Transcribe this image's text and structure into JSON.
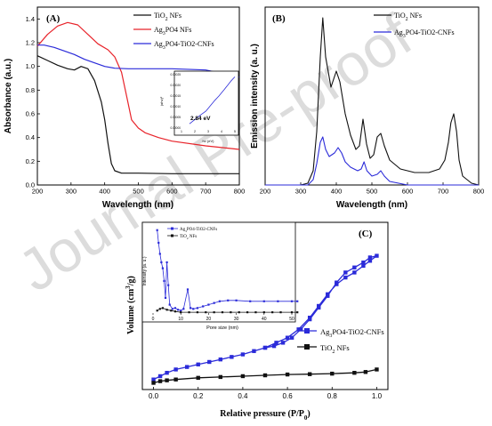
{
  "watermark": "Journal Pre-proof",
  "colors": {
    "black": "#111111",
    "red": "#e8232a",
    "blue": "#2b2bd9",
    "frame": "#000000",
    "watermark": "#d9d9d9"
  },
  "chart_data": [
    {
      "type": "line",
      "panel": "(A)",
      "xlabel": "Wavelength (nm)",
      "ylabel": "Absorbance (a.u.)",
      "xlim": [
        200,
        800
      ],
      "ylim": [
        0,
        1.5
      ],
      "xticks": [
        "200",
        "300",
        "400",
        "500",
        "600",
        "700",
        "800"
      ],
      "yticks": [
        "0.0",
        "0.2",
        "0.4",
        "0.6",
        "0.8",
        "1.0",
        "1.2",
        "1.4"
      ],
      "legend_placement": "top-right",
      "series": [
        {
          "name": "TiO2 NFs",
          "legend_main": "TiO",
          "legend_sub": "2",
          "legend_rest": " NFs",
          "color": "#111111",
          "x": [
            200,
            230,
            260,
            290,
            310,
            330,
            350,
            370,
            390,
            400,
            410,
            420,
            430,
            450,
            500,
            600,
            700,
            800
          ],
          "y": [
            1.09,
            1.05,
            1.01,
            0.98,
            0.97,
            1.0,
            0.98,
            0.88,
            0.7,
            0.55,
            0.35,
            0.18,
            0.12,
            0.1,
            0.1,
            0.095,
            0.095,
            0.095
          ]
        },
        {
          "name": "Ag3PO4 NFs",
          "legend_main": "Ag",
          "legend_sub": "3",
          "legend_rest": "PO4 NFs",
          "color": "#e8232a",
          "x": [
            200,
            230,
            260,
            290,
            320,
            350,
            380,
            410,
            430,
            450,
            465,
            480,
            500,
            520,
            560,
            600,
            700,
            800
          ],
          "y": [
            1.17,
            1.27,
            1.34,
            1.37,
            1.35,
            1.27,
            1.19,
            1.14,
            1.08,
            0.95,
            0.75,
            0.55,
            0.48,
            0.44,
            0.4,
            0.37,
            0.33,
            0.3
          ]
        },
        {
          "name": "Ag3PO4-TiO2-CNFs",
          "legend_main": "Ag",
          "legend_sub": "3",
          "legend_rest": "PO4-TiO2-CNFs",
          "color": "#2b2bd9",
          "x": [
            200,
            220,
            250,
            280,
            310,
            340,
            370,
            400,
            430,
            470,
            520,
            600,
            700,
            800
          ],
          "y": [
            1.18,
            1.18,
            1.16,
            1.13,
            1.1,
            1.06,
            1.03,
            1.0,
            0.985,
            0.98,
            0.98,
            0.98,
            0.97,
            0.91
          ]
        }
      ],
      "inset": {
        "ylabel": "(αhν)²",
        "xlabel": "hν (eV)",
        "yticks": [
          "0.00025",
          "0.00020",
          "0.00015",
          "0.00010",
          "0.00005",
          "0.00000"
        ],
        "xticks": [
          "1",
          "2",
          "3",
          "4",
          "5"
        ],
        "annotation": "2.84 eV",
        "x": [
          1.6,
          2.0,
          2.4,
          2.84,
          3.1,
          3.5,
          3.8,
          4.2,
          4.7,
          5.0
        ],
        "y": [
          2e-05,
          4e-05,
          6e-05,
          8e-05,
          0.0001,
          0.00013,
          0.00015,
          0.00018,
          0.00022,
          0.00024
        ]
      }
    },
    {
      "type": "line",
      "panel": "(B)",
      "xlabel": "Wavelength (nm)",
      "ylabel": "Emission intensity (a. u.)",
      "xlim": [
        200,
        800
      ],
      "ylim": [
        0,
        100
      ],
      "xticks": [
        "200",
        "300",
        "400",
        "500",
        "600",
        "700",
        "800"
      ],
      "legend_placement": "top-right",
      "series": [
        {
          "name": "TiO2 NFs",
          "legend_main": "TiO",
          "legend_sub": "2",
          "legend_rest": " NFs",
          "color": "#111111",
          "x": [
            200,
            300,
            320,
            335,
            345,
            355,
            362,
            370,
            385,
            400,
            410,
            425,
            440,
            455,
            465,
            475,
            485,
            495,
            505,
            515,
            525,
            535,
            550,
            580,
            620,
            660,
            690,
            705,
            715,
            722,
            730,
            738,
            745,
            755,
            780,
            800
          ],
          "y": [
            0,
            0,
            1,
            8,
            30,
            72,
            94,
            72,
            55,
            64,
            58,
            40,
            28,
            20,
            22,
            37,
            23,
            15,
            17,
            27,
            29,
            22,
            14,
            9,
            7,
            7,
            9,
            14,
            24,
            35,
            40,
            30,
            14,
            5,
            1,
            0
          ]
        },
        {
          "name": "Ag3PO4-TiO2-CNFs",
          "legend_main": "Ag",
          "legend_sub": "3",
          "legend_rest": "PO4-TiO2-CNFs",
          "color": "#2b2bd9",
          "x": [
            200,
            320,
            335,
            345,
            355,
            362,
            370,
            380,
            395,
            405,
            415,
            425,
            440,
            460,
            470,
            478,
            486,
            500,
            515,
            525,
            535,
            550,
            600,
            800
          ],
          "y": [
            0,
            0,
            3,
            12,
            24,
            27,
            20,
            16,
            18,
            21,
            18,
            13,
            10,
            8,
            9,
            13,
            8,
            5,
            6,
            8,
            5,
            2,
            0,
            0
          ]
        }
      ]
    },
    {
      "type": "line",
      "panel": "(C)",
      "xlabel": "Relative pressure (P/P0)",
      "xlabel_main": "Relative pressure (P/P",
      "xlabel_sub": "0",
      "xlabel_end": ")",
      "ylabel": "Volume (cm3/g)",
      "ylabel_main": "Volume (cm",
      "ylabel_sup": "3",
      "ylabel_end": "/g)",
      "xlim": [
        -0.05,
        1.05
      ],
      "ylim": [
        0,
        100
      ],
      "xticks": [
        "0.0",
        "0.2",
        "0.4",
        "0.6",
        "0.8",
        "1.0"
      ],
      "legend_placement": "bottom-right",
      "series": [
        {
          "name": "Ag3PO4-TiO2-CNFs",
          "legend_main": "Ag",
          "legend_sub": "3",
          "legend_rest": "PO4-TiO2-CNFs",
          "color": "#2b2bd9",
          "x": [
            0.0,
            0.03,
            0.06,
            0.1,
            0.15,
            0.2,
            0.25,
            0.3,
            0.35,
            0.4,
            0.45,
            0.5,
            0.55,
            0.6,
            0.65,
            0.7,
            0.74,
            0.78,
            0.82,
            0.86,
            0.9,
            0.94,
            0.97,
            1.0,
            0.97,
            0.94,
            0.9,
            0.86,
            0.82,
            0.78,
            0.74,
            0.7,
            0.66,
            0.62,
            0.58,
            0.54,
            0.5
          ],
          "y": [
            6,
            8,
            10,
            12,
            13.5,
            15,
            16.5,
            18,
            19.5,
            21,
            23,
            25,
            28,
            31,
            36,
            43,
            50,
            57,
            63,
            67,
            70,
            74,
            77,
            80,
            79,
            76,
            73,
            70,
            64,
            56,
            49,
            42,
            36,
            31,
            28,
            26,
            25
          ]
        },
        {
          "name": "TiO2 NFs",
          "legend_main": "TiO",
          "legend_sub": "2",
          "legend_rest": " NFs",
          "color": "#111111",
          "x": [
            0.0,
            0.03,
            0.06,
            0.1,
            0.2,
            0.3,
            0.4,
            0.5,
            0.6,
            0.7,
            0.8,
            0.9,
            0.95,
            1.0
          ],
          "y": [
            4,
            5,
            5.5,
            6,
            7,
            7.5,
            8,
            8.5,
            9,
            9.2,
            9.5,
            10,
            10.5,
            12
          ]
        }
      ],
      "inset": {
        "xlabel": "Pore size (nm)",
        "ylabel": "Intensity (a. u.)",
        "xlim": [
          0,
          50
        ],
        "xticks": [
          "0",
          "10",
          "20",
          "30",
          "40",
          "50"
        ],
        "series": [
          {
            "name": "Ag3PO4-TiO2-CNFs",
            "legend_main": "Ag",
            "legend_sub": "3",
            "legend_rest": "PO4-TiO2-CNFs",
            "color": "#2b2bd9",
            "x": [
              1.5,
              2.0,
              2.5,
              3.0,
              3.5,
              4.0,
              4.5,
              5.0,
              5.5,
              6.0,
              7.0,
              8.0,
              9.0,
              10.0,
              11.0,
              12.5,
              13.5,
              14.5,
              16.0,
              18.0,
              20.0,
              22.0,
              24.0,
              27.0,
              30.0,
              35.0,
              40.0,
              45.0,
              50.0,
              52.0
            ],
            "y": [
              1.0,
              0.85,
              0.72,
              0.62,
              0.55,
              0.4,
              0.2,
              0.62,
              0.35,
              0.12,
              0.07,
              0.08,
              0.06,
              0.05,
              0.07,
              0.3,
              0.08,
              0.07,
              0.08,
              0.1,
              0.12,
              0.14,
              0.16,
              0.17,
              0.17,
              0.16,
              0.16,
              0.16,
              0.16,
              0.16
            ]
          },
          {
            "name": "TiO2 NFs",
            "legend_main": "TiO",
            "legend_sub": "2",
            "legend_rest": " NFs",
            "color": "#111111",
            "x": [
              1.5,
              2.5,
              3.5,
              5.0,
              6.5,
              8.0,
              10.0,
              13.0,
              16.0,
              19.0,
              22.0,
              25.0,
              28.0,
              31.0,
              34.0,
              37.0,
              40.0,
              43.0,
              46.0,
              50.0,
              52.0
            ],
            "y": [
              0.05,
              0.07,
              0.08,
              0.06,
              0.05,
              0.04,
              0.03,
              0.03,
              0.03,
              0.03,
              0.03,
              0.03,
              0.03,
              0.03,
              0.03,
              0.03,
              0.03,
              0.03,
              0.03,
              0.03,
              0.03
            ]
          }
        ]
      }
    }
  ]
}
